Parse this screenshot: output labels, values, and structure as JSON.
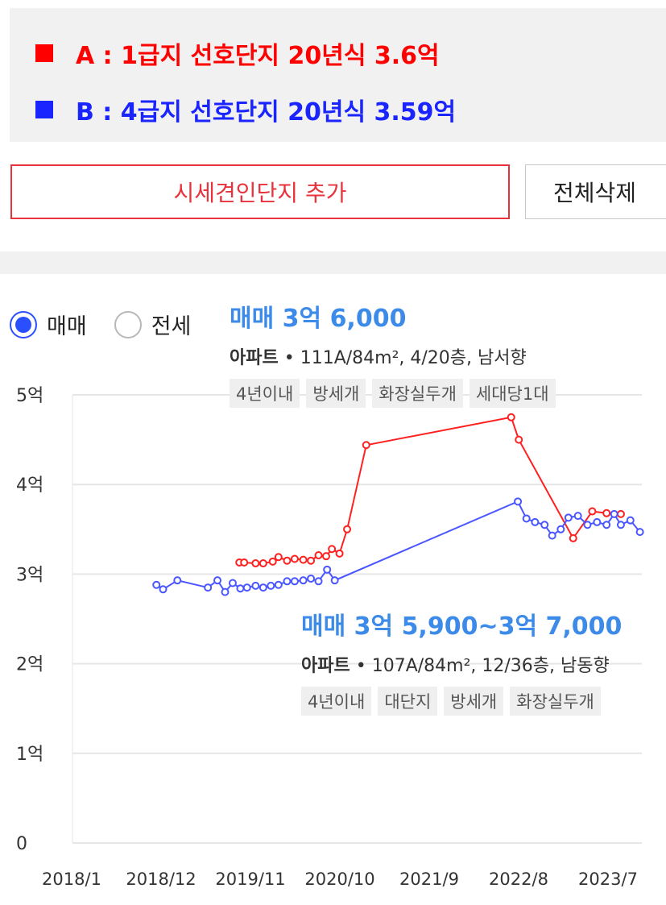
{
  "legend": {
    "a": {
      "label": "A : 1급지 선호단지 20년식 3.6억",
      "color": "#ff0000"
    },
    "b": {
      "label": "B : 4급지 선호단지 20년식 3.59억",
      "color": "#1a24ff"
    }
  },
  "buttons": {
    "add_label": "시세견인단지 추가",
    "delete_all_label": "전체삭제"
  },
  "tabs": {
    "sale_label": "매매",
    "jeonse_label": "전세",
    "selected": "매매"
  },
  "tooltip_a": {
    "price": "매매 3억 6,000",
    "type": "아파트",
    "info": " • 111A/84m², 4/20층, 남서향",
    "tags": [
      "4년이내",
      "방세개",
      "화장실두개",
      "세대당1대"
    ]
  },
  "tooltip_b": {
    "price": "매매 3억 5,900~3억 7,000",
    "type": "아파트",
    "info": " • 107A/84m², 12/36층, 남동향",
    "tags": [
      "4년이내",
      "대단지",
      "방세개",
      "화장실두개"
    ]
  },
  "chart_data": {
    "type": "line",
    "x_ticks": [
      "2018/1",
      "2018/12",
      "2019/11",
      "2020/10",
      "2021/9",
      "2022/8",
      "2023/7"
    ],
    "y_ticks": [
      "0",
      "1억",
      "2억",
      "3억",
      "4억",
      "5억"
    ],
    "ylim": [
      0,
      5
    ],
    "y_unit": "억",
    "grid": true,
    "series": [
      {
        "name": "A",
        "color": "#ff2020",
        "points": [
          [
            2019.75,
            3.13
          ],
          [
            2019.8,
            3.13
          ],
          [
            2019.92,
            3.12
          ],
          [
            2020.0,
            3.12
          ],
          [
            2020.1,
            3.14
          ],
          [
            2020.16,
            3.19
          ],
          [
            2020.25,
            3.15
          ],
          [
            2020.33,
            3.17
          ],
          [
            2020.42,
            3.16
          ],
          [
            2020.5,
            3.15
          ],
          [
            2020.58,
            3.21
          ],
          [
            2020.66,
            3.2
          ],
          [
            2020.72,
            3.28
          ],
          [
            2020.8,
            3.23
          ],
          [
            2020.88,
            3.5
          ],
          [
            2021.08,
            4.44
          ],
          [
            2022.6,
            4.75
          ],
          [
            2022.68,
            4.5
          ],
          [
            2023.25,
            3.4
          ],
          [
            2023.45,
            3.7
          ],
          [
            2023.6,
            3.68
          ],
          [
            2023.75,
            3.67
          ]
        ]
      },
      {
        "name": "B",
        "color": "#4a56ff",
        "points": [
          [
            2018.88,
            2.88
          ],
          [
            2018.95,
            2.83
          ],
          [
            2019.1,
            2.93
          ],
          [
            2019.42,
            2.85
          ],
          [
            2019.52,
            2.93
          ],
          [
            2019.6,
            2.8
          ],
          [
            2019.68,
            2.9
          ],
          [
            2019.76,
            2.84
          ],
          [
            2019.83,
            2.85
          ],
          [
            2019.92,
            2.87
          ],
          [
            2020.0,
            2.85
          ],
          [
            2020.08,
            2.87
          ],
          [
            2020.16,
            2.88
          ],
          [
            2020.25,
            2.92
          ],
          [
            2020.33,
            2.92
          ],
          [
            2020.42,
            2.93
          ],
          [
            2020.5,
            2.95
          ],
          [
            2020.58,
            2.92
          ],
          [
            2020.67,
            3.05
          ],
          [
            2020.75,
            2.93
          ],
          [
            2022.67,
            3.81
          ],
          [
            2022.76,
            3.62
          ],
          [
            2022.85,
            3.58
          ],
          [
            2022.95,
            3.55
          ],
          [
            2023.03,
            3.43
          ],
          [
            2023.12,
            3.5
          ],
          [
            2023.2,
            3.63
          ],
          [
            2023.3,
            3.65
          ],
          [
            2023.4,
            3.55
          ],
          [
            2023.5,
            3.58
          ],
          [
            2023.6,
            3.55
          ],
          [
            2023.68,
            3.67
          ],
          [
            2023.75,
            3.55
          ],
          [
            2023.85,
            3.6
          ],
          [
            2023.95,
            3.47
          ]
        ]
      }
    ]
  }
}
